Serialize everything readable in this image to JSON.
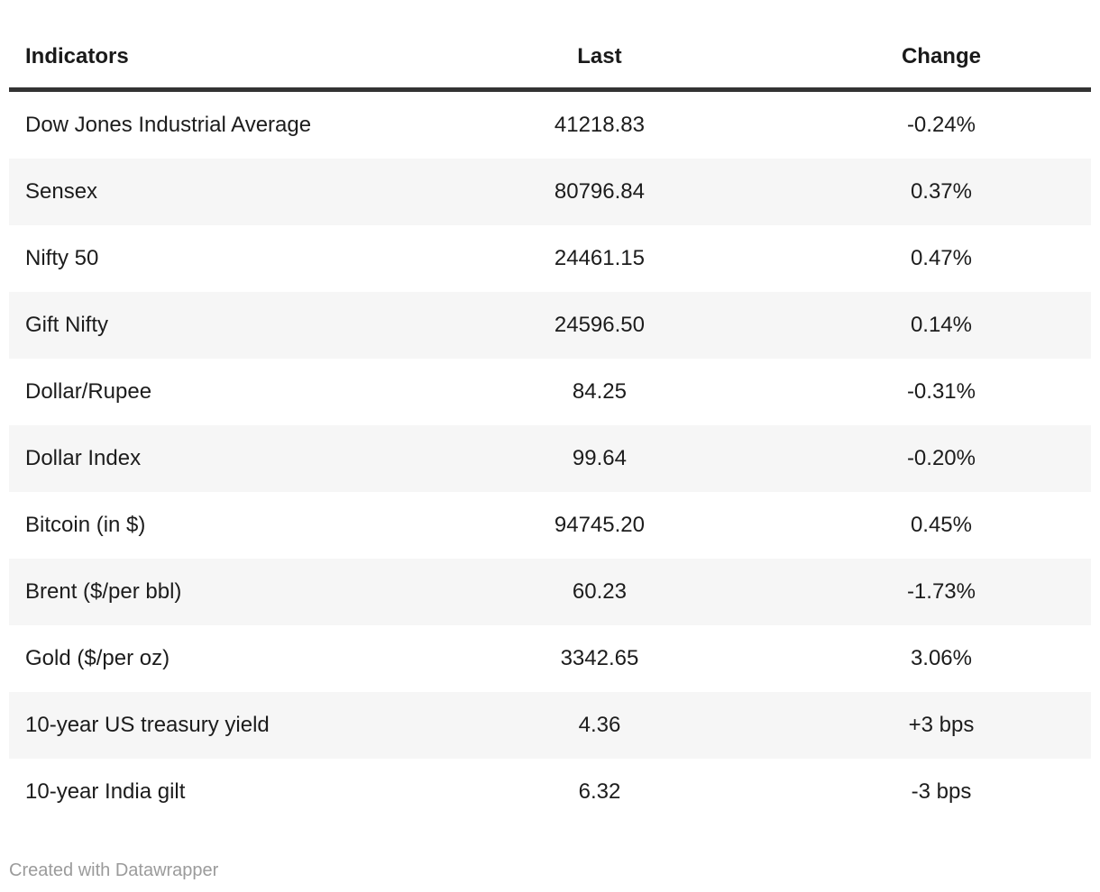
{
  "chart_data": {
    "type": "table",
    "columns": [
      "Indicators",
      "Last",
      "Change"
    ],
    "rows": [
      [
        "Dow Jones Industrial Average",
        "41218.83",
        "-0.24%"
      ],
      [
        "Sensex",
        "80796.84",
        "0.37%"
      ],
      [
        "Nifty 50",
        "24461.15",
        "0.47%"
      ],
      [
        "Gift Nifty",
        "24596.50",
        "0.14%"
      ],
      [
        "Dollar/Rupee",
        "84.25",
        "-0.31%"
      ],
      [
        "Dollar Index",
        "99.64",
        "-0.20%"
      ],
      [
        "Bitcoin (in $)",
        "94745.20",
        "0.45%"
      ],
      [
        "Brent ($/per bbl)",
        "60.23",
        "-1.73%"
      ],
      [
        "Gold ($/per oz)",
        "3342.65",
        "3.06%"
      ],
      [
        "10-year US treasury yield",
        "4.36",
        "+3 bps"
      ],
      [
        "10-year India gilt",
        "6.32",
        "-3 bps"
      ]
    ],
    "layout_hints": {
      "zebra_striping": true,
      "stripe_color": "#f6f6f6",
      "header_rule_color": "#333333",
      "text_color": "#1c1c1c",
      "column_alignment": [
        "left",
        "center",
        "center"
      ]
    }
  },
  "footer": {
    "credit": "Created with Datawrapper"
  }
}
